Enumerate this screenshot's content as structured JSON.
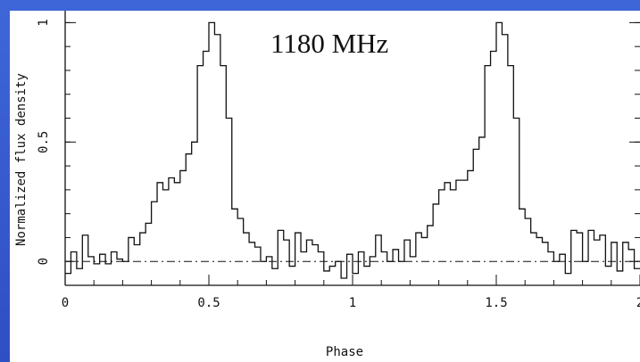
{
  "chart_data": {
    "type": "line",
    "step": true,
    "xlabel": "Phase",
    "ylabel": "Normalized flux density",
    "annotation": "1180 MHz",
    "xlim": [
      0,
      2
    ],
    "ylim": [
      -0.1,
      1.05
    ],
    "x_ticks": [
      0,
      0.5,
      1,
      1.5,
      2
    ],
    "x_tick_labels": [
      "0",
      "0.5",
      "1",
      "1.5",
      "2"
    ],
    "y_ticks": [
      0,
      0.5,
      1
    ],
    "y_tick_labels": [
      "0",
      "0.5",
      "1"
    ],
    "baseline": 0,
    "series": [
      {
        "x": [
          0.0,
          0.02,
          0.04,
          0.06,
          0.08,
          0.1,
          0.12,
          0.14,
          0.16,
          0.18,
          0.2,
          0.22,
          0.24,
          0.26,
          0.28,
          0.3,
          0.32,
          0.34,
          0.36,
          0.38,
          0.4,
          0.42,
          0.44,
          0.46,
          0.48,
          0.5,
          0.52,
          0.54,
          0.56,
          0.58,
          0.6,
          0.62,
          0.64,
          0.66,
          0.68,
          0.7,
          0.72,
          0.74,
          0.76,
          0.78,
          0.8,
          0.82,
          0.84,
          0.86,
          0.88,
          0.9,
          0.92,
          0.94,
          0.96,
          0.98,
          1.0,
          1.02,
          1.04,
          1.06,
          1.08,
          1.1,
          1.12,
          1.14,
          1.16,
          1.18,
          1.2,
          1.22,
          1.24,
          1.26,
          1.28,
          1.3,
          1.32,
          1.34,
          1.36,
          1.38,
          1.4,
          1.42,
          1.44,
          1.46,
          1.48,
          1.5,
          1.52,
          1.54,
          1.56,
          1.58,
          1.6,
          1.62,
          1.64,
          1.66,
          1.68,
          1.7,
          1.72,
          1.74,
          1.76,
          1.78,
          1.8,
          1.82,
          1.84,
          1.86,
          1.88,
          1.9,
          1.92,
          1.94,
          1.96,
          1.98
        ],
        "y": [
          -0.05,
          0.04,
          -0.03,
          0.11,
          0.02,
          -0.01,
          0.03,
          -0.01,
          0.04,
          0.01,
          0.0,
          0.1,
          0.07,
          0.12,
          0.16,
          0.25,
          0.33,
          0.3,
          0.35,
          0.33,
          0.38,
          0.45,
          0.5,
          0.82,
          0.88,
          1.0,
          0.95,
          0.82,
          0.6,
          0.22,
          0.18,
          0.12,
          0.08,
          0.06,
          0.0,
          0.02,
          -0.03,
          0.13,
          0.09,
          -0.02,
          0.12,
          0.04,
          0.09,
          0.07,
          0.04,
          -0.04,
          -0.02,
          0.0,
          -0.07,
          0.03,
          -0.05,
          0.04,
          -0.02,
          0.02,
          0.11,
          0.04,
          0.0,
          0.05,
          0.0,
          0.09,
          0.02,
          0.12,
          0.1,
          0.15,
          0.24,
          0.3,
          0.33,
          0.3,
          0.34,
          0.34,
          0.38,
          0.47,
          0.52,
          0.82,
          0.88,
          1.0,
          0.95,
          0.82,
          0.6,
          0.22,
          0.18,
          0.12,
          0.1,
          0.08,
          0.04,
          0.0,
          0.03,
          -0.05,
          0.13,
          0.12,
          0.0,
          0.13,
          0.09,
          0.11,
          -0.02,
          0.08,
          -0.04,
          0.08,
          0.05,
          -0.03
        ]
      }
    ]
  }
}
